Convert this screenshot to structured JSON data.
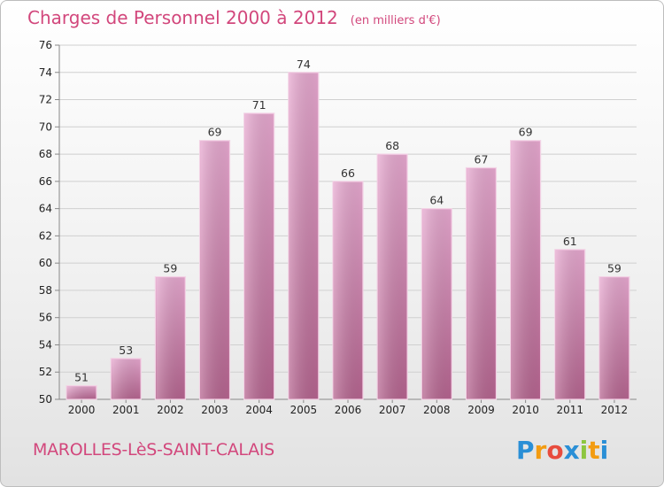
{
  "chart_data": {
    "type": "bar",
    "title": "Charges de Personnel 2000 à 2012",
    "subtitle": "(en milliers d'€)",
    "categories": [
      "2000",
      "2001",
      "2002",
      "2003",
      "2004",
      "2005",
      "2006",
      "2007",
      "2008",
      "2009",
      "2010",
      "2011",
      "2012"
    ],
    "values": [
      51,
      53,
      59,
      69,
      71,
      74,
      66,
      68,
      64,
      67,
      69,
      61,
      59
    ],
    "ylim": [
      50,
      76
    ],
    "yticks": [
      50,
      52,
      54,
      56,
      58,
      60,
      62,
      64,
      66,
      68,
      70,
      72,
      74,
      76
    ],
    "grid": true,
    "bar_color": "#c67ba6"
  },
  "location": "MAROLLES-LèS-SAINT-CALAIS",
  "logo": {
    "text": "Proxiti",
    "letters": [
      "P",
      "r",
      "o",
      "x",
      "i",
      "t",
      "i"
    ],
    "letter_colors": [
      "#2a8fd6",
      "#f39c12",
      "#e84c3d",
      "#2a8fd6",
      "#8dc63f",
      "#f39c12",
      "#2a8fd6"
    ]
  }
}
